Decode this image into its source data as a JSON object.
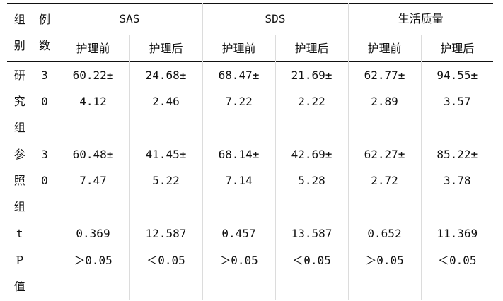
{
  "table": {
    "header": {
      "group_col_chars": [
        "组",
        "别"
      ],
      "count_col_chars": [
        "例",
        "数"
      ],
      "groups": [
        "SAS",
        "SDS",
        "生活质量"
      ],
      "sub": [
        "护理前",
        "护理后",
        "护理前",
        "护理后",
        "护理前",
        "护理后"
      ]
    },
    "rows": [
      {
        "label_chars": [
          "研",
          "究",
          "组"
        ],
        "count_chars": [
          "3",
          "0"
        ],
        "cells": [
          [
            "60.22±",
            "4.12"
          ],
          [
            "24.68±",
            "2.46"
          ],
          [
            "68.47±",
            "7.22"
          ],
          [
            "21.69±",
            "2.22"
          ],
          [
            "62.77±",
            "2.89"
          ],
          [
            "94.55±",
            "3.57"
          ]
        ]
      },
      {
        "label_chars": [
          "参",
          "照",
          "组"
        ],
        "count_chars": [
          "3",
          "0"
        ],
        "cells": [
          [
            "60.48±",
            "7.47"
          ],
          [
            "41.45±",
            "5.22"
          ],
          [
            "68.14±",
            "7.14"
          ],
          [
            "42.69±",
            "5.28"
          ],
          [
            "62.27±",
            "2.72"
          ],
          [
            "85.22±",
            "3.78"
          ]
        ]
      }
    ],
    "t_row": {
      "label": "t",
      "values": [
        "0.369",
        "12.587",
        "0.457",
        "13.587",
        "0.652",
        "11.369"
      ]
    },
    "p_row": {
      "label_chars": [
        "P",
        "值"
      ],
      "values": [
        "＞0.05",
        "＜0.05",
        "＞0.05",
        "＜0.05",
        "＞0.05",
        "＜0.05"
      ]
    }
  }
}
